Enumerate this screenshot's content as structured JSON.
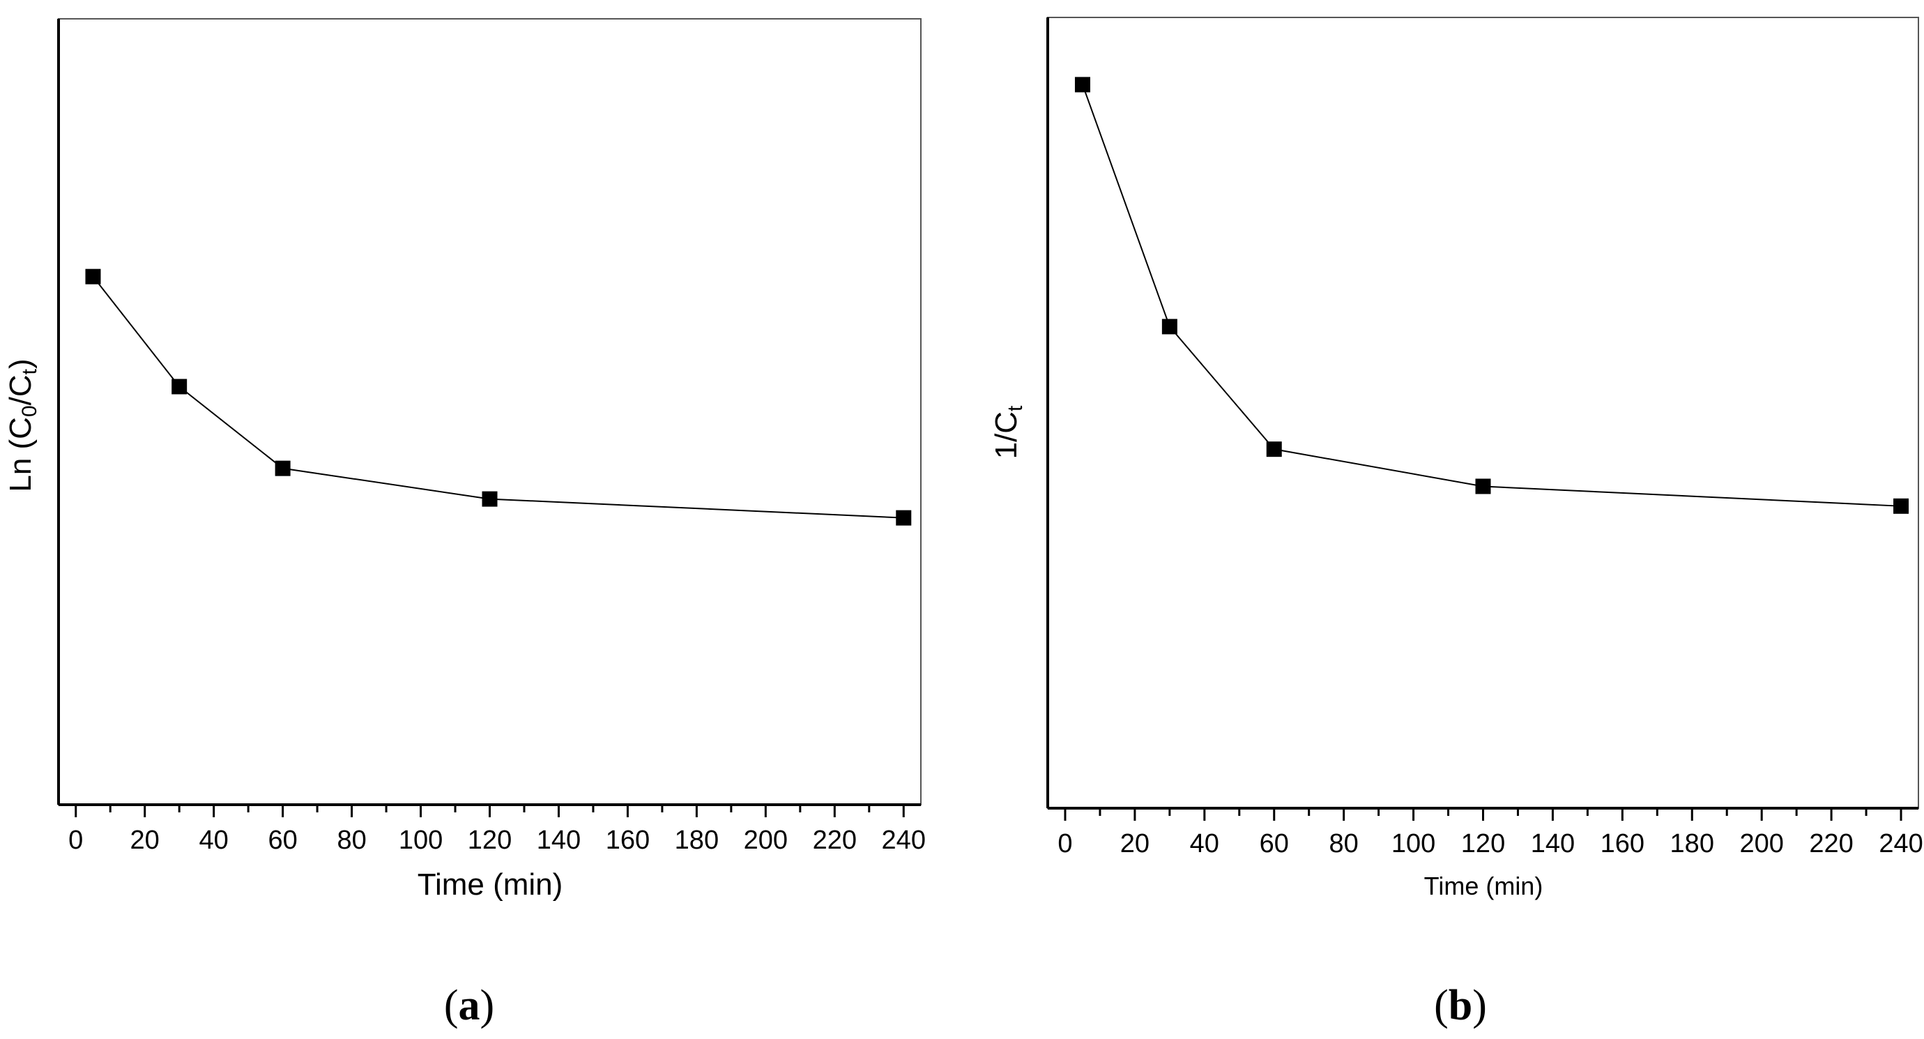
{
  "chart_data": [
    {
      "type": "line",
      "panel": "(a)",
      "panel_letter": "a",
      "xlabel": "Time (min)",
      "ylabel": {
        "main": "Ln (C",
        "sub1": "0",
        "mid": "/C",
        "sub2": "t",
        "end": ")"
      },
      "x_ticks": [
        0,
        20,
        40,
        60,
        80,
        100,
        120,
        140,
        160,
        180,
        200,
        220,
        240
      ],
      "xlim": [
        -5,
        245
      ],
      "y_ticks_shown": false,
      "grid": false,
      "marker": "square",
      "line_color": "#000000",
      "series": [
        {
          "x": [
            5,
            30,
            60,
            120,
            240
          ],
          "y": [
            0.672,
            0.532,
            0.428,
            0.389,
            0.365
          ]
        }
      ]
    },
    {
      "type": "line",
      "panel": "(b)",
      "panel_letter": "b",
      "xlabel": "Time (min)",
      "ylabel": {
        "main": "1/C",
        "sub1": "",
        "mid": "",
        "sub2": "t",
        "end": ""
      },
      "x_ticks": [
        0,
        20,
        40,
        60,
        80,
        100,
        120,
        140,
        160,
        180,
        200,
        220,
        240
      ],
      "xlim": [
        -5,
        245
      ],
      "y_ticks_shown": false,
      "grid": false,
      "marker": "square",
      "line_color": "#000000",
      "series": [
        {
          "x": [
            5,
            30,
            60,
            120,
            240
          ],
          "y": [
            0.915,
            0.609,
            0.454,
            0.407,
            0.382
          ]
        }
      ]
    }
  ]
}
